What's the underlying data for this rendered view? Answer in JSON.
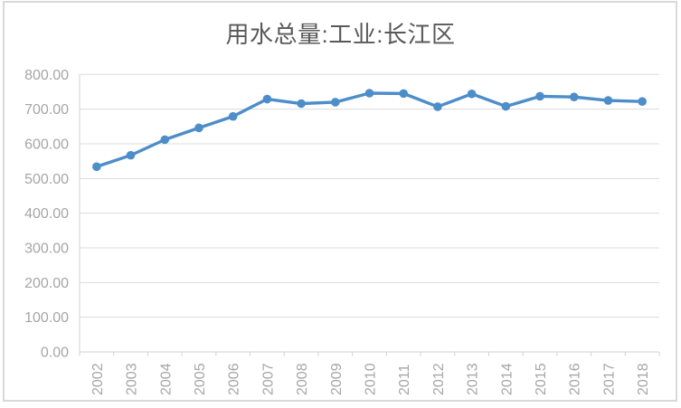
{
  "window": {
    "background_color": "#ffffff",
    "frame_border_color": "#d9d9d9"
  },
  "chart_data": {
    "type": "line",
    "title": "用水总量:工业:长江区",
    "categories": [
      "2002",
      "2003",
      "2004",
      "2005",
      "2006",
      "2007",
      "2008",
      "2009",
      "2010",
      "2011",
      "2012",
      "2013",
      "2014",
      "2015",
      "2016",
      "2017",
      "2018"
    ],
    "series": [
      {
        "name": "用水总量:工业:长江区",
        "values": [
          534,
          567,
          612,
          646,
          679,
          729,
          716,
          720,
          746,
          745,
          707,
          744,
          708,
          737,
          735,
          725,
          722
        ]
      }
    ],
    "xlabel": "",
    "ylabel": "",
    "ylim": [
      0,
      800
    ],
    "ytick_step": 100,
    "ytick_labels": [
      "0.00",
      "100.00",
      "200.00",
      "300.00",
      "400.00",
      "500.00",
      "600.00",
      "700.00",
      "800.00"
    ],
    "x_tick_rotation": -90,
    "grid": true,
    "legend_position": "none",
    "marker": "circle",
    "styles": {
      "line_color": "#4d8dc9",
      "marker_color": "#4d8dc9",
      "grid_color": "#dcdcdc",
      "axis_color": "#d2d2d2",
      "title_color": "#595959",
      "tick_label_color": "#a6a6a6"
    }
  }
}
